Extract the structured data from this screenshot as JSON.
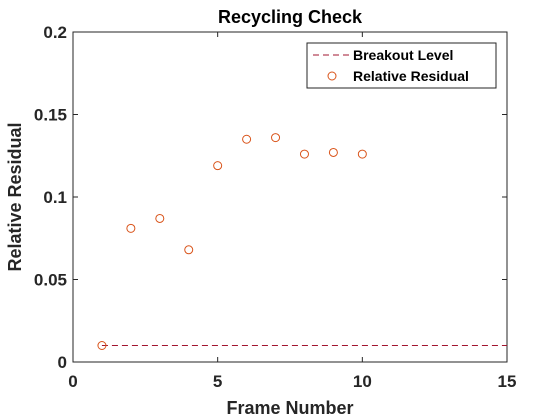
{
  "chart_data": {
    "type": "scatter",
    "title": "Recycling Check",
    "xlabel": "Frame Number",
    "ylabel": "Relative Residual",
    "xlim": [
      0,
      15
    ],
    "ylim": [
      0,
      0.2
    ],
    "xticks": [
      0,
      5,
      10,
      15
    ],
    "yticks": [
      0,
      0.05,
      0.1,
      0.15,
      0.2
    ],
    "xtick_labels": [
      "0",
      "5",
      "10",
      "15"
    ],
    "ytick_labels": [
      "0",
      "0.05",
      "0.1",
      "0.15",
      "0.2"
    ],
    "grid": false,
    "legend_position": "top-right",
    "series": [
      {
        "name": "Breakout Level",
        "kind": "line",
        "style": "dashed",
        "color": "#A2142F",
        "x": [
          1,
          15
        ],
        "y": [
          0.01,
          0.01
        ]
      },
      {
        "name": "Relative Residual",
        "kind": "scatter",
        "marker": "open-circle",
        "color": "#D95319",
        "x": [
          1,
          2,
          3,
          4,
          5,
          6,
          7,
          8,
          9,
          10
        ],
        "y": [
          0.01,
          0.081,
          0.087,
          0.068,
          0.119,
          0.135,
          0.136,
          0.126,
          0.127,
          0.126
        ]
      }
    ]
  }
}
